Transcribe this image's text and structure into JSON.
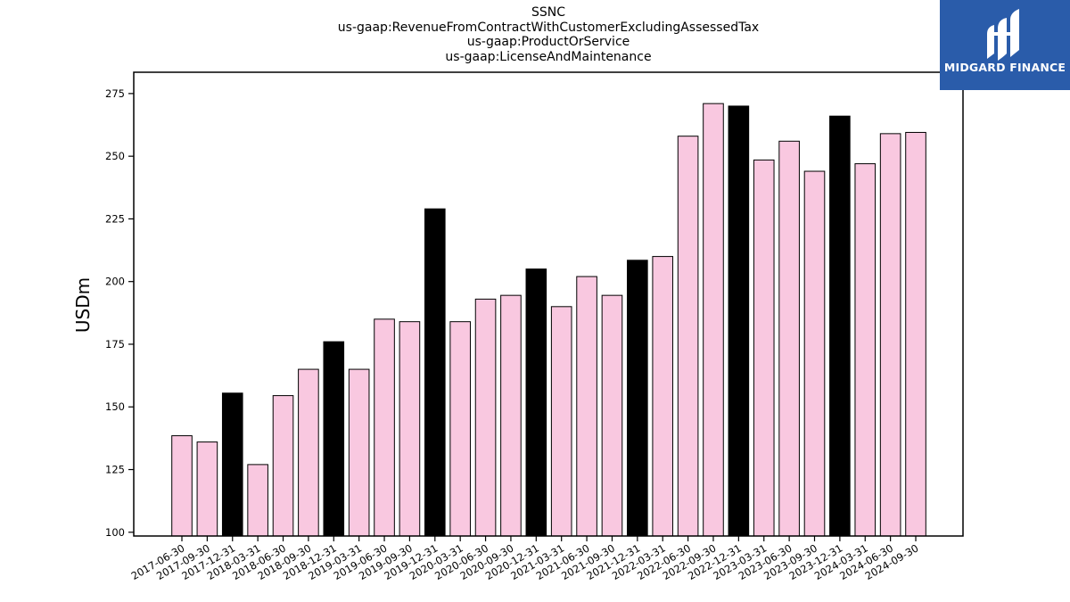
{
  "header": {
    "title_lines": [
      "SSNC",
      "us-gaap:RevenueFromContractWithCustomerExcludingAssessedTax",
      "us-gaap:ProductOrService",
      "us-gaap:LicenseAndMaintenance"
    ]
  },
  "logo": {
    "text": "MIDGARD FINANCE",
    "background": "#2a5caa"
  },
  "chart_data": {
    "type": "bar",
    "title": "SSNC",
    "xlabel": "",
    "ylabel": "USDm",
    "ylim": [
      98.5,
      283.5
    ],
    "yticks": [
      100,
      125,
      150,
      175,
      200,
      225,
      250,
      275
    ],
    "grid": false,
    "legend": "none",
    "colors": {
      "regular": "#f9c8e0",
      "year_end": "#000000",
      "edge": "#000000"
    },
    "categories": [
      "2017-06-30",
      "2017-09-30",
      "2017-12-31",
      "2018-03-31",
      "2018-06-30",
      "2018-09-30",
      "2018-12-31",
      "2019-03-31",
      "2019-06-30",
      "2019-09-30",
      "2019-12-31",
      "2020-03-31",
      "2020-06-30",
      "2020-09-30",
      "2020-12-31",
      "2021-03-31",
      "2021-06-30",
      "2021-09-30",
      "2021-12-31",
      "2022-03-31",
      "2022-06-30",
      "2022-09-30",
      "2022-12-31",
      "2023-03-31",
      "2023-06-30",
      "2023-09-30",
      "2023-12-31",
      "2024-03-31",
      "2024-06-30",
      "2024-09-30"
    ],
    "values": [
      138.5,
      136.0,
      155.5,
      127.0,
      154.5,
      165.0,
      176.0,
      165.0,
      185.0,
      184.0,
      229.0,
      184.0,
      193.0,
      194.5,
      205.0,
      190.0,
      202.0,
      194.5,
      208.5,
      210.0,
      258.0,
      271.0,
      270.0,
      248.5,
      256.0,
      244.0,
      266.0,
      247.0,
      259.0,
      259.5
    ],
    "highlight_year_end": [
      false,
      false,
      true,
      false,
      false,
      false,
      true,
      false,
      false,
      false,
      true,
      false,
      false,
      false,
      true,
      false,
      false,
      false,
      true,
      false,
      false,
      false,
      true,
      false,
      false,
      false,
      true,
      false,
      false,
      false
    ]
  }
}
